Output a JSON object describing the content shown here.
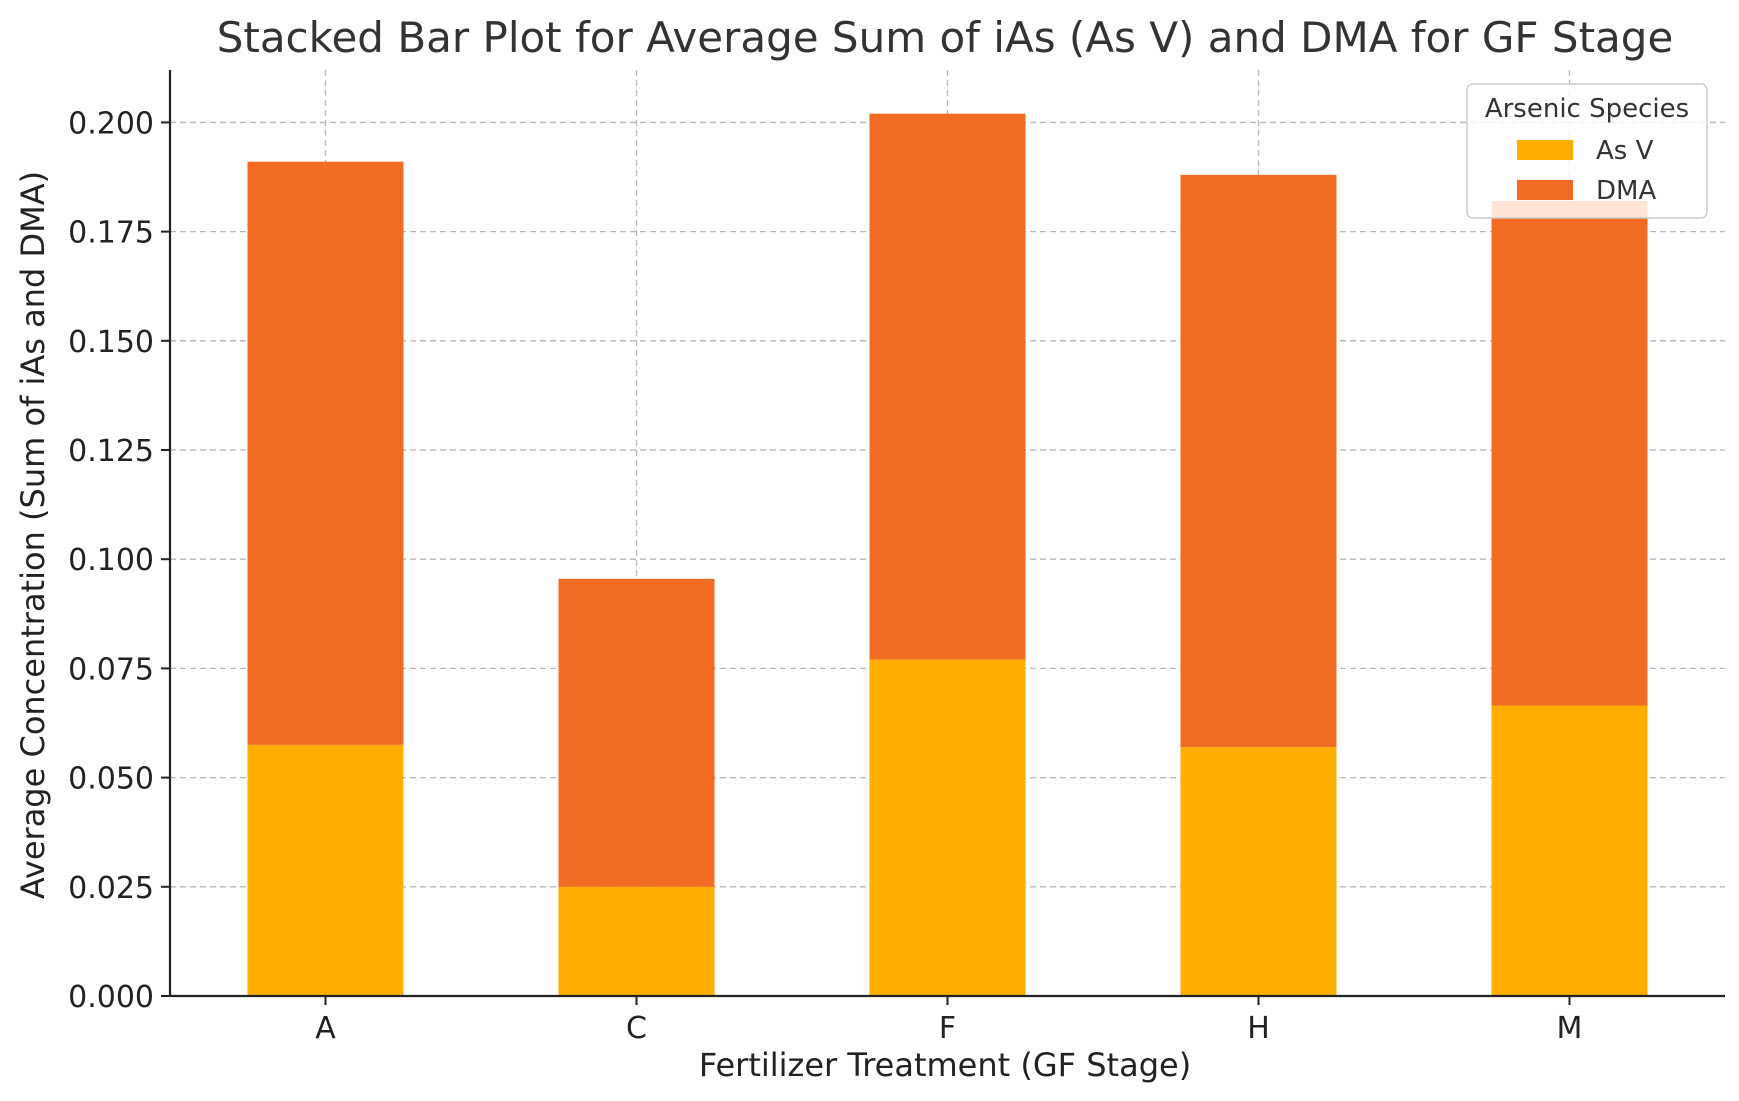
{
  "chart_data": {
    "type": "bar",
    "stacked": true,
    "title": "Stacked Bar Plot for Average Sum of iAs (As V) and DMA for GF Stage",
    "xlabel": "Fertilizer Treatment (GF Stage)",
    "ylabel": "Average Concentration (Sum of iAs and DMA)",
    "categories": [
      "A",
      "C",
      "F",
      "H",
      "M"
    ],
    "series": [
      {
        "name": "As V",
        "color": "#FFAE00",
        "values": [
          0.0575,
          0.025,
          0.077,
          0.057,
          0.0665
        ]
      },
      {
        "name": "DMA",
        "color": "#F26B22",
        "values": [
          0.1335,
          0.0705,
          0.125,
          0.131,
          0.1155
        ]
      }
    ],
    "ylim": [
      0,
      0.212
    ],
    "yticks": [
      "0.000",
      "0.025",
      "0.050",
      "0.075",
      "0.100",
      "0.125",
      "0.150",
      "0.175",
      "0.200"
    ],
    "grid": true,
    "legend": {
      "title": "Arsenic Species",
      "placement": "top-right"
    }
  }
}
